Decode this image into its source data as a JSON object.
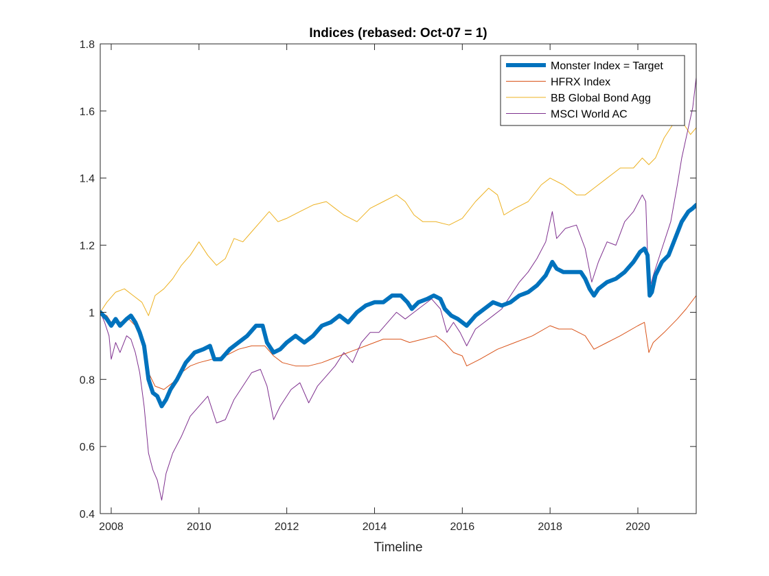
{
  "chart_data": {
    "type": "line",
    "title": "Indices (rebased: Oct-07 = 1)",
    "xlabel": "Timeline",
    "ylabel": "",
    "xlim": [
      2007.75,
      2021.33
    ],
    "ylim": [
      0.4,
      1.8
    ],
    "xticks": [
      2008,
      2010,
      2012,
      2014,
      2016,
      2018,
      2020
    ],
    "yticks": [
      0.4,
      0.6,
      0.8,
      1.0,
      1.2,
      1.4,
      1.6,
      1.8
    ],
    "ytick_labels": [
      "0.4",
      "0.6",
      "0.8",
      "1",
      "1.2",
      "1.4",
      "1.6",
      "1.8"
    ],
    "legend_position": "top-right",
    "grid": false,
    "series": [
      {
        "name": "Monster Index = Target",
        "color": "#0072BD",
        "width": 6,
        "points": [
          [
            2007.75,
            1.0
          ],
          [
            2007.9,
            0.98
          ],
          [
            2008.0,
            0.96
          ],
          [
            2008.1,
            0.98
          ],
          [
            2008.2,
            0.96
          ],
          [
            2008.35,
            0.98
          ],
          [
            2008.45,
            0.99
          ],
          [
            2008.55,
            0.97
          ],
          [
            2008.65,
            0.94
          ],
          [
            2008.75,
            0.9
          ],
          [
            2008.85,
            0.8
          ],
          [
            2008.95,
            0.76
          ],
          [
            2009.05,
            0.75
          ],
          [
            2009.15,
            0.72
          ],
          [
            2009.25,
            0.74
          ],
          [
            2009.35,
            0.77
          ],
          [
            2009.5,
            0.8
          ],
          [
            2009.7,
            0.85
          ],
          [
            2009.9,
            0.88
          ],
          [
            2010.1,
            0.89
          ],
          [
            2010.25,
            0.9
          ],
          [
            2010.35,
            0.86
          ],
          [
            2010.5,
            0.86
          ],
          [
            2010.7,
            0.89
          ],
          [
            2010.9,
            0.91
          ],
          [
            2011.1,
            0.93
          ],
          [
            2011.3,
            0.96
          ],
          [
            2011.45,
            0.96
          ],
          [
            2011.55,
            0.91
          ],
          [
            2011.7,
            0.88
          ],
          [
            2011.85,
            0.89
          ],
          [
            2012.0,
            0.91
          ],
          [
            2012.2,
            0.93
          ],
          [
            2012.4,
            0.91
          ],
          [
            2012.6,
            0.93
          ],
          [
            2012.8,
            0.96
          ],
          [
            2013.0,
            0.97
          ],
          [
            2013.2,
            0.99
          ],
          [
            2013.4,
            0.97
          ],
          [
            2013.6,
            1.0
          ],
          [
            2013.8,
            1.02
          ],
          [
            2014.0,
            1.03
          ],
          [
            2014.2,
            1.03
          ],
          [
            2014.4,
            1.05
          ],
          [
            2014.6,
            1.05
          ],
          [
            2014.75,
            1.03
          ],
          [
            2014.85,
            1.01
          ],
          [
            2015.0,
            1.03
          ],
          [
            2015.2,
            1.04
          ],
          [
            2015.35,
            1.05
          ],
          [
            2015.5,
            1.04
          ],
          [
            2015.6,
            1.01
          ],
          [
            2015.75,
            0.99
          ],
          [
            2015.9,
            0.98
          ],
          [
            2016.0,
            0.97
          ],
          [
            2016.1,
            0.96
          ],
          [
            2016.3,
            0.99
          ],
          [
            2016.5,
            1.01
          ],
          [
            2016.7,
            1.03
          ],
          [
            2016.9,
            1.02
          ],
          [
            2017.1,
            1.03
          ],
          [
            2017.3,
            1.05
          ],
          [
            2017.5,
            1.06
          ],
          [
            2017.7,
            1.08
          ],
          [
            2017.9,
            1.11
          ],
          [
            2018.05,
            1.15
          ],
          [
            2018.15,
            1.13
          ],
          [
            2018.3,
            1.12
          ],
          [
            2018.5,
            1.12
          ],
          [
            2018.7,
            1.12
          ],
          [
            2018.8,
            1.1
          ],
          [
            2018.9,
            1.07
          ],
          [
            2019.0,
            1.05
          ],
          [
            2019.1,
            1.07
          ],
          [
            2019.3,
            1.09
          ],
          [
            2019.5,
            1.1
          ],
          [
            2019.7,
            1.12
          ],
          [
            2019.9,
            1.15
          ],
          [
            2020.05,
            1.18
          ],
          [
            2020.15,
            1.19
          ],
          [
            2020.22,
            1.17
          ],
          [
            2020.27,
            1.05
          ],
          [
            2020.32,
            1.06
          ],
          [
            2020.4,
            1.11
          ],
          [
            2020.55,
            1.15
          ],
          [
            2020.7,
            1.17
          ],
          [
            2020.85,
            1.22
          ],
          [
            2021.0,
            1.27
          ],
          [
            2021.15,
            1.3
          ],
          [
            2021.25,
            1.31
          ],
          [
            2021.33,
            1.32
          ]
        ]
      },
      {
        "name": "HFRX Index",
        "color": "#D95319",
        "width": 1,
        "points": [
          [
            2007.75,
            1.0
          ],
          [
            2007.9,
            0.99
          ],
          [
            2008.0,
            0.97
          ],
          [
            2008.2,
            0.97
          ],
          [
            2008.4,
            0.98
          ],
          [
            2008.55,
            0.96
          ],
          [
            2008.7,
            0.92
          ],
          [
            2008.85,
            0.82
          ],
          [
            2009.0,
            0.78
          ],
          [
            2009.2,
            0.77
          ],
          [
            2009.4,
            0.79
          ],
          [
            2009.6,
            0.82
          ],
          [
            2009.8,
            0.84
          ],
          [
            2010.0,
            0.85
          ],
          [
            2010.3,
            0.86
          ],
          [
            2010.6,
            0.87
          ],
          [
            2010.9,
            0.89
          ],
          [
            2011.2,
            0.9
          ],
          [
            2011.5,
            0.9
          ],
          [
            2011.7,
            0.87
          ],
          [
            2011.9,
            0.85
          ],
          [
            2012.2,
            0.84
          ],
          [
            2012.5,
            0.84
          ],
          [
            2012.8,
            0.85
          ],
          [
            2013.0,
            0.86
          ],
          [
            2013.4,
            0.88
          ],
          [
            2013.8,
            0.9
          ],
          [
            2014.2,
            0.92
          ],
          [
            2014.6,
            0.92
          ],
          [
            2014.8,
            0.91
          ],
          [
            2015.1,
            0.92
          ],
          [
            2015.4,
            0.93
          ],
          [
            2015.6,
            0.91
          ],
          [
            2015.8,
            0.88
          ],
          [
            2016.0,
            0.87
          ],
          [
            2016.1,
            0.84
          ],
          [
            2016.4,
            0.86
          ],
          [
            2016.8,
            0.89
          ],
          [
            2017.2,
            0.91
          ],
          [
            2017.6,
            0.93
          ],
          [
            2018.0,
            0.96
          ],
          [
            2018.2,
            0.95
          ],
          [
            2018.5,
            0.95
          ],
          [
            2018.8,
            0.93
          ],
          [
            2019.0,
            0.89
          ],
          [
            2019.3,
            0.91
          ],
          [
            2019.6,
            0.93
          ],
          [
            2020.0,
            0.96
          ],
          [
            2020.15,
            0.97
          ],
          [
            2020.25,
            0.88
          ],
          [
            2020.35,
            0.91
          ],
          [
            2020.6,
            0.94
          ],
          [
            2020.9,
            0.98
          ],
          [
            2021.1,
            1.01
          ],
          [
            2021.33,
            1.05
          ]
        ]
      },
      {
        "name": "BB Global Bond Agg",
        "color": "#EDB120",
        "width": 1,
        "points": [
          [
            2007.75,
            1.0
          ],
          [
            2007.9,
            1.03
          ],
          [
            2008.1,
            1.06
          ],
          [
            2008.3,
            1.07
          ],
          [
            2008.5,
            1.05
          ],
          [
            2008.7,
            1.03
          ],
          [
            2008.85,
            0.99
          ],
          [
            2009.0,
            1.05
          ],
          [
            2009.2,
            1.07
          ],
          [
            2009.4,
            1.1
          ],
          [
            2009.6,
            1.14
          ],
          [
            2009.8,
            1.17
          ],
          [
            2010.0,
            1.21
          ],
          [
            2010.2,
            1.17
          ],
          [
            2010.4,
            1.14
          ],
          [
            2010.6,
            1.16
          ],
          [
            2010.8,
            1.22
          ],
          [
            2011.0,
            1.21
          ],
          [
            2011.2,
            1.24
          ],
          [
            2011.4,
            1.27
          ],
          [
            2011.6,
            1.3
          ],
          [
            2011.8,
            1.27
          ],
          [
            2012.0,
            1.28
          ],
          [
            2012.3,
            1.3
          ],
          [
            2012.6,
            1.32
          ],
          [
            2012.9,
            1.33
          ],
          [
            2013.1,
            1.31
          ],
          [
            2013.3,
            1.29
          ],
          [
            2013.6,
            1.27
          ],
          [
            2013.9,
            1.31
          ],
          [
            2014.2,
            1.33
          ],
          [
            2014.5,
            1.35
          ],
          [
            2014.7,
            1.33
          ],
          [
            2014.9,
            1.29
          ],
          [
            2015.1,
            1.27
          ],
          [
            2015.4,
            1.27
          ],
          [
            2015.7,
            1.26
          ],
          [
            2016.0,
            1.28
          ],
          [
            2016.3,
            1.33
          ],
          [
            2016.6,
            1.37
          ],
          [
            2016.8,
            1.35
          ],
          [
            2016.95,
            1.29
          ],
          [
            2017.2,
            1.31
          ],
          [
            2017.5,
            1.33
          ],
          [
            2017.8,
            1.38
          ],
          [
            2018.0,
            1.4
          ],
          [
            2018.3,
            1.38
          ],
          [
            2018.6,
            1.35
          ],
          [
            2018.8,
            1.35
          ],
          [
            2019.0,
            1.37
          ],
          [
            2019.3,
            1.4
          ],
          [
            2019.6,
            1.43
          ],
          [
            2019.9,
            1.43
          ],
          [
            2020.1,
            1.46
          ],
          [
            2020.25,
            1.44
          ],
          [
            2020.4,
            1.46
          ],
          [
            2020.6,
            1.52
          ],
          [
            2020.8,
            1.56
          ],
          [
            2021.0,
            1.57
          ],
          [
            2021.2,
            1.53
          ],
          [
            2021.33,
            1.55
          ]
        ]
      },
      {
        "name": "MSCI World AC",
        "color": "#7E2F8E",
        "width": 1,
        "points": [
          [
            2007.75,
            1.0
          ],
          [
            2007.85,
            0.97
          ],
          [
            2007.95,
            0.93
          ],
          [
            2008.0,
            0.86
          ],
          [
            2008.1,
            0.91
          ],
          [
            2008.2,
            0.88
          ],
          [
            2008.35,
            0.93
          ],
          [
            2008.45,
            0.92
          ],
          [
            2008.55,
            0.88
          ],
          [
            2008.65,
            0.82
          ],
          [
            2008.75,
            0.72
          ],
          [
            2008.85,
            0.58
          ],
          [
            2008.95,
            0.53
          ],
          [
            2009.05,
            0.5
          ],
          [
            2009.15,
            0.44
          ],
          [
            2009.25,
            0.52
          ],
          [
            2009.4,
            0.58
          ],
          [
            2009.6,
            0.63
          ],
          [
            2009.8,
            0.69
          ],
          [
            2010.0,
            0.72
          ],
          [
            2010.2,
            0.75
          ],
          [
            2010.4,
            0.67
          ],
          [
            2010.6,
            0.68
          ],
          [
            2010.8,
            0.74
          ],
          [
            2011.0,
            0.78
          ],
          [
            2011.2,
            0.82
          ],
          [
            2011.4,
            0.83
          ],
          [
            2011.55,
            0.78
          ],
          [
            2011.7,
            0.68
          ],
          [
            2011.85,
            0.72
          ],
          [
            2012.1,
            0.77
          ],
          [
            2012.3,
            0.79
          ],
          [
            2012.5,
            0.73
          ],
          [
            2012.7,
            0.78
          ],
          [
            2012.9,
            0.81
          ],
          [
            2013.1,
            0.84
          ],
          [
            2013.3,
            0.88
          ],
          [
            2013.5,
            0.85
          ],
          [
            2013.7,
            0.91
          ],
          [
            2013.9,
            0.94
          ],
          [
            2014.1,
            0.94
          ],
          [
            2014.3,
            0.97
          ],
          [
            2014.5,
            1.0
          ],
          [
            2014.7,
            0.98
          ],
          [
            2014.9,
            1.0
          ],
          [
            2015.1,
            1.02
          ],
          [
            2015.3,
            1.04
          ],
          [
            2015.5,
            1.01
          ],
          [
            2015.65,
            0.94
          ],
          [
            2015.8,
            0.97
          ],
          [
            2015.95,
            0.94
          ],
          [
            2016.1,
            0.9
          ],
          [
            2016.3,
            0.95
          ],
          [
            2016.5,
            0.97
          ],
          [
            2016.7,
            0.99
          ],
          [
            2016.9,
            1.01
          ],
          [
            2017.1,
            1.05
          ],
          [
            2017.3,
            1.09
          ],
          [
            2017.5,
            1.12
          ],
          [
            2017.7,
            1.16
          ],
          [
            2017.9,
            1.21
          ],
          [
            2018.05,
            1.3
          ],
          [
            2018.15,
            1.22
          ],
          [
            2018.35,
            1.25
          ],
          [
            2018.6,
            1.26
          ],
          [
            2018.8,
            1.19
          ],
          [
            2018.95,
            1.09
          ],
          [
            2019.1,
            1.15
          ],
          [
            2019.3,
            1.21
          ],
          [
            2019.5,
            1.2
          ],
          [
            2019.7,
            1.27
          ],
          [
            2019.9,
            1.3
          ],
          [
            2020.1,
            1.35
          ],
          [
            2020.18,
            1.33
          ],
          [
            2020.25,
            1.06
          ],
          [
            2020.35,
            1.11
          ],
          [
            2020.55,
            1.19
          ],
          [
            2020.75,
            1.27
          ],
          [
            2020.9,
            1.38
          ],
          [
            2021.0,
            1.46
          ],
          [
            2021.15,
            1.55
          ],
          [
            2021.25,
            1.61
          ],
          [
            2021.33,
            1.7
          ]
        ]
      }
    ]
  }
}
